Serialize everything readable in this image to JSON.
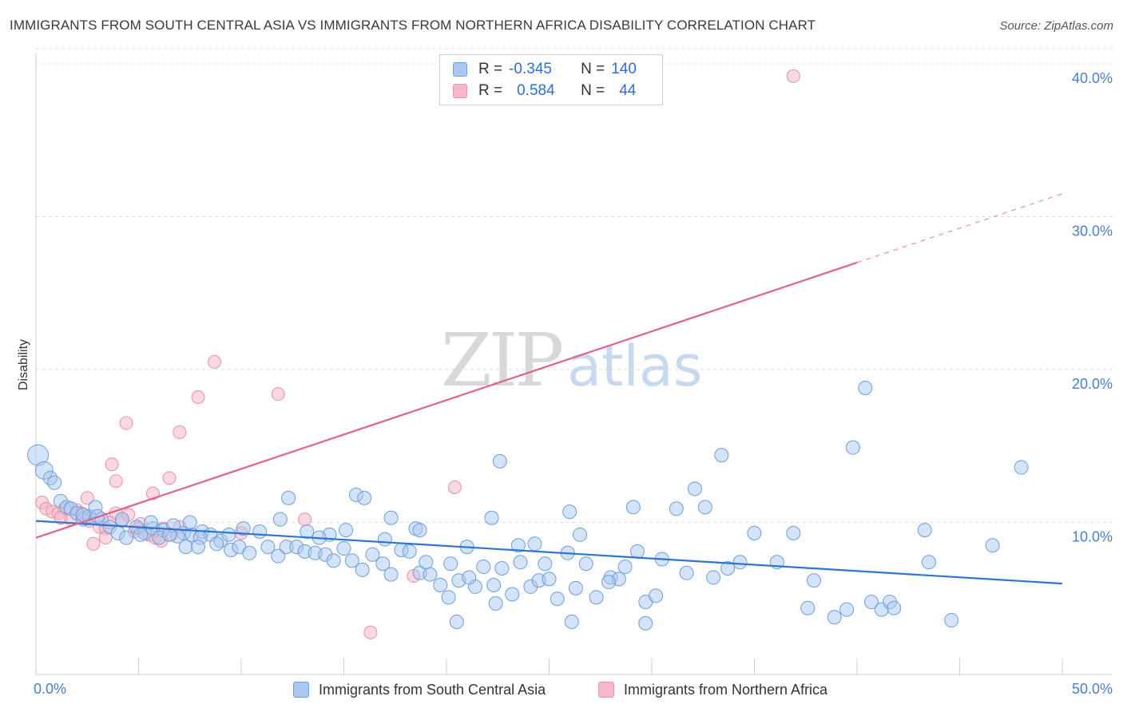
{
  "title": "IMMIGRANTS FROM SOUTH CENTRAL ASIA VS IMMIGRANTS FROM NORTHERN AFRICA DISABILITY CORRELATION CHART",
  "source": "Source: ZipAtlas.com",
  "watermark": {
    "zip": "ZIP",
    "atlas": "atlas"
  },
  "legend": {
    "rows": [
      {
        "r_label": "R =",
        "r_value": "-0.345",
        "n_label": "N =",
        "n_value": "140"
      },
      {
        "r_label": "R =",
        "r_value": "0.584",
        "n_label": "N =",
        "n_value": "44"
      }
    ]
  },
  "bottom_legend": {
    "series_a": "Immigrants from South Central Asia",
    "series_b": "Immigrants from Northern Africa"
  },
  "colors": {
    "blue_fill": "#a9c7ef",
    "blue_stroke": "#6d9fdc",
    "blue_line": "#2e74d0",
    "pink_fill": "#f5b8c9",
    "pink_stroke": "#e98fab",
    "pink_line": "#e0628a",
    "grid": "#dcdcdc",
    "tick_text": "#4a7fc7"
  },
  "chart_data": {
    "type": "scatter",
    "title": "IMMIGRANTS FROM SOUTH CENTRAL ASIA VS IMMIGRANTS FROM NORTHERN AFRICA DISABILITY CORRELATION CHART",
    "xlabel": "",
    "ylabel": "Disability",
    "xlim": [
      0,
      50
    ],
    "ylim": [
      0,
      40
    ],
    "x_tick_labels": [
      "0.0%",
      "50.0%"
    ],
    "y_ticks": [
      10,
      20,
      30,
      40
    ],
    "y_tick_labels": [
      "10.0%",
      "20.0%",
      "30.0%",
      "40.0%"
    ],
    "grid": true,
    "legend_position": "top-center",
    "series": [
      {
        "name": "Immigrants from South Central Asia",
        "color": "blue",
        "R": -0.345,
        "N": 140,
        "trend": {
          "x": [
            0,
            50
          ],
          "y": [
            10.1,
            6.0
          ]
        },
        "points": [
          [
            0.1,
            14.4
          ],
          [
            0.4,
            13.4
          ],
          [
            0.7,
            12.9
          ],
          [
            0.9,
            12.6
          ],
          [
            1.2,
            11.4
          ],
          [
            1.5,
            11.0
          ],
          [
            1.7,
            10.9
          ],
          [
            2.0,
            10.6
          ],
          [
            2.3,
            10.2
          ],
          [
            2.6,
            10.4
          ],
          [
            2.9,
            11.0
          ],
          [
            3.2,
            10.2
          ],
          [
            3.6,
            9.7
          ],
          [
            4.0,
            9.3
          ],
          [
            4.4,
            9.0
          ],
          [
            4.9,
            9.7
          ],
          [
            5.3,
            9.3
          ],
          [
            5.7,
            9.6
          ],
          [
            6.2,
            9.5
          ],
          [
            6.7,
            9.8
          ],
          [
            7.2,
            9.3
          ],
          [
            7.6,
            9.2
          ],
          [
            8.1,
            9.4
          ],
          [
            8.5,
            9.2
          ],
          [
            9.0,
            8.8
          ],
          [
            2.3,
            10.5
          ],
          [
            3.0,
            10.4
          ],
          [
            4.2,
            10.2
          ],
          [
            5.1,
            9.2
          ],
          [
            6.0,
            9.0
          ],
          [
            6.9,
            9.1
          ],
          [
            7.3,
            8.4
          ],
          [
            8.0,
            9.0
          ],
          [
            8.8,
            8.6
          ],
          [
            9.5,
            8.2
          ],
          [
            9.9,
            8.4
          ],
          [
            10.4,
            8.0
          ],
          [
            10.9,
            9.4
          ],
          [
            11.3,
            8.4
          ],
          [
            11.8,
            7.8
          ],
          [
            12.2,
            8.4
          ],
          [
            12.7,
            8.4
          ],
          [
            13.1,
            8.1
          ],
          [
            13.6,
            8.0
          ],
          [
            14.1,
            7.9
          ],
          [
            14.5,
            7.5
          ],
          [
            15.0,
            8.3
          ],
          [
            15.4,
            7.5
          ],
          [
            15.9,
            6.9
          ],
          [
            16.4,
            7.9
          ],
          [
            16.9,
            7.3
          ],
          [
            17.3,
            6.6
          ],
          [
            17.8,
            8.2
          ],
          [
            18.2,
            8.1
          ],
          [
            18.7,
            6.7
          ],
          [
            19.2,
            6.6
          ],
          [
            19.7,
            5.9
          ],
          [
            20.1,
            5.1
          ],
          [
            20.6,
            6.2
          ],
          [
            21.0,
            8.4
          ],
          [
            21.4,
            5.8
          ],
          [
            21.8,
            7.1
          ],
          [
            22.3,
            5.9
          ],
          [
            22.7,
            7.0
          ],
          [
            23.2,
            5.3
          ],
          [
            23.6,
            7.4
          ],
          [
            24.1,
            5.8
          ],
          [
            24.5,
            6.2
          ],
          [
            25.0,
            6.3
          ],
          [
            25.4,
            5.0
          ],
          [
            25.9,
            8.0
          ],
          [
            26.3,
            5.7
          ],
          [
            26.8,
            7.3
          ],
          [
            7.5,
            10.0
          ],
          [
            7.9,
            8.4
          ],
          [
            11.9,
            10.2
          ],
          [
            13.2,
            9.4
          ],
          [
            14.3,
            9.2
          ],
          [
            15.6,
            11.8
          ],
          [
            16.0,
            11.6
          ],
          [
            17.3,
            10.3
          ],
          [
            18.5,
            9.6
          ],
          [
            20.2,
            7.3
          ],
          [
            21.1,
            6.4
          ],
          [
            22.2,
            10.3
          ],
          [
            22.6,
            14.0
          ],
          [
            23.5,
            8.5
          ],
          [
            24.3,
            8.6
          ],
          [
            26.0,
            10.7
          ],
          [
            26.5,
            9.2
          ],
          [
            27.3,
            5.1
          ],
          [
            28.0,
            6.4
          ],
          [
            28.4,
            6.3
          ],
          [
            28.7,
            7.1
          ],
          [
            29.1,
            11.0
          ],
          [
            29.3,
            8.1
          ],
          [
            29.7,
            4.8
          ],
          [
            30.2,
            5.2
          ],
          [
            31.7,
            6.7
          ],
          [
            32.1,
            12.2
          ],
          [
            32.6,
            11.0
          ],
          [
            33.0,
            6.4
          ],
          [
            33.4,
            14.4
          ],
          [
            33.7,
            7.0
          ],
          [
            34.3,
            7.4
          ],
          [
            36.1,
            7.4
          ],
          [
            36.9,
            9.3
          ],
          [
            37.6,
            4.4
          ],
          [
            37.9,
            6.2
          ],
          [
            38.9,
            3.8
          ],
          [
            39.5,
            4.3
          ],
          [
            39.8,
            14.9
          ],
          [
            40.4,
            18.8
          ],
          [
            40.7,
            4.8
          ],
          [
            41.2,
            4.3
          ],
          [
            41.6,
            4.8
          ],
          [
            41.8,
            4.4
          ],
          [
            43.3,
            9.5
          ],
          [
            43.5,
            7.4
          ],
          [
            44.6,
            3.6
          ],
          [
            46.6,
            8.5
          ],
          [
            48.0,
            13.6
          ],
          [
            12.3,
            11.6
          ],
          [
            9.4,
            9.2
          ],
          [
            18.7,
            9.5
          ],
          [
            22.4,
            4.7
          ],
          [
            26.1,
            3.5
          ],
          [
            29.7,
            3.4
          ],
          [
            30.5,
            7.6
          ],
          [
            35.0,
            9.3
          ],
          [
            20.5,
            3.5
          ],
          [
            13.8,
            9.0
          ],
          [
            5.6,
            10.0
          ],
          [
            6.5,
            9.2
          ],
          [
            10.1,
            9.6
          ],
          [
            19.0,
            7.4
          ],
          [
            24.8,
            7.3
          ],
          [
            31.2,
            10.9
          ],
          [
            17.0,
            8.9
          ],
          [
            15.1,
            9.5
          ],
          [
            27.9,
            6.1
          ]
        ]
      },
      {
        "name": "Immigrants from Northern Africa",
        "color": "pink",
        "R": 0.584,
        "N": 44,
        "trend": {
          "x": [
            0,
            40
          ],
          "y": [
            9.0,
            27.0
          ]
        },
        "trend_dashed": {
          "x": [
            40,
            50
          ],
          "y": [
            27.0,
            31.5
          ]
        },
        "points": [
          [
            0.3,
            11.3
          ],
          [
            0.5,
            10.9
          ],
          [
            0.8,
            10.7
          ],
          [
            1.1,
            10.6
          ],
          [
            1.4,
            10.9
          ],
          [
            1.7,
            10.2
          ],
          [
            2.0,
            10.8
          ],
          [
            2.3,
            10.4
          ],
          [
            2.6,
            10.1
          ],
          [
            2.8,
            8.6
          ],
          [
            3.1,
            9.7
          ],
          [
            3.4,
            9.6
          ],
          [
            3.6,
            10.0
          ],
          [
            3.9,
            10.6
          ],
          [
            4.2,
            10.1
          ],
          [
            4.5,
            10.5
          ],
          [
            4.8,
            9.4
          ],
          [
            5.1,
            9.9
          ],
          [
            5.5,
            9.2
          ],
          [
            5.8,
            9.0
          ],
          [
            6.2,
            9.6
          ],
          [
            6.6,
            9.2
          ],
          [
            7.0,
            9.7
          ],
          [
            2.5,
            11.6
          ],
          [
            3.7,
            13.8
          ],
          [
            3.9,
            12.7
          ],
          [
            4.4,
            16.5
          ],
          [
            5.7,
            11.9
          ],
          [
            6.5,
            12.9
          ],
          [
            7.0,
            15.9
          ],
          [
            7.9,
            18.2
          ],
          [
            8.7,
            20.5
          ],
          [
            11.8,
            18.4
          ],
          [
            13.1,
            10.2
          ],
          [
            16.3,
            2.8
          ],
          [
            20.4,
            12.3
          ],
          [
            36.9,
            39.2
          ],
          [
            1.2,
            10.3
          ],
          [
            2.2,
            10.6
          ],
          [
            3.4,
            9.0
          ],
          [
            5.0,
            9.6
          ],
          [
            6.1,
            8.8
          ],
          [
            10.0,
            9.3
          ],
          [
            18.4,
            6.5
          ]
        ]
      }
    ]
  }
}
